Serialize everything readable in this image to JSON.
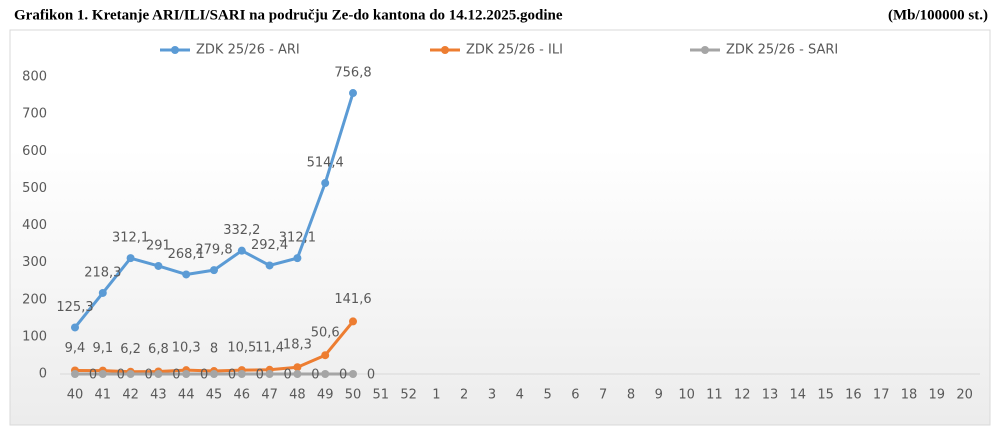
{
  "title": "Grafikon 1. Kretanje ARI/ILI/SARI na području Ze-do kantona do 14.12.2025.godine",
  "unit": "(Mb/100000 st.)",
  "chart_data": {
    "type": "line",
    "categories": [
      "40",
      "41",
      "42",
      "43",
      "44",
      "45",
      "46",
      "47",
      "48",
      "49",
      "50",
      "51",
      "52",
      "1",
      "2",
      "3",
      "4",
      "5",
      "6",
      "7",
      "8",
      "9",
      "10",
      "11",
      "12",
      "13",
      "14",
      "15",
      "16",
      "17",
      "18",
      "19",
      "20"
    ],
    "ylim": [
      0,
      800
    ],
    "yticks": [
      0,
      100,
      200,
      300,
      400,
      500,
      600,
      700,
      800
    ],
    "series": [
      {
        "name": "ZDK 25/26 - ARI",
        "color": "#5b9bd5",
        "values": [
          125.3,
          218.3,
          312.1,
          291,
          268.1,
          279.8,
          332.2,
          292.4,
          312.1,
          514.4,
          756.8,
          null,
          null,
          null,
          null,
          null,
          null,
          null,
          null,
          null,
          null,
          null,
          null,
          null,
          null,
          null,
          null,
          null,
          null,
          null,
          null,
          null,
          null
        ],
        "value_labels": [
          "125,3",
          "218,3",
          "312,1",
          "291",
          "268,1",
          "279,8",
          "332,2",
          "292,4",
          "312,1",
          "514,4",
          "756,8",
          null,
          null,
          null,
          null,
          null,
          null,
          null,
          null,
          null,
          null,
          null,
          null,
          null,
          null,
          null,
          null,
          null,
          null,
          null,
          null,
          null,
          null
        ]
      },
      {
        "name": "ZDK 25/26 - ILI",
        "color": "#ed7d31",
        "values": [
          9.4,
          9.1,
          6.2,
          6.8,
          10.3,
          8,
          10.5,
          11.4,
          18.3,
          50.6,
          141.6,
          null,
          null,
          null,
          null,
          null,
          null,
          null,
          null,
          null,
          null,
          null,
          null,
          null,
          null,
          null,
          null,
          null,
          null,
          null,
          null,
          null,
          null
        ],
        "value_labels": [
          "9,4",
          "9,1",
          "6,2",
          "6,8",
          "10,3",
          "8",
          "10,5",
          "11,4",
          "18,3",
          "50,6",
          "141,6",
          null,
          null,
          null,
          null,
          null,
          null,
          null,
          null,
          null,
          null,
          null,
          null,
          null,
          null,
          null,
          null,
          null,
          null,
          null,
          null,
          null,
          null
        ]
      },
      {
        "name": "ZDK 25/26 - SARI",
        "color": "#a5a5a5",
        "values": [
          0,
          0,
          0,
          0,
          0,
          0,
          0,
          0,
          0,
          0,
          0,
          null,
          null,
          null,
          null,
          null,
          null,
          null,
          null,
          null,
          null,
          null,
          null,
          null,
          null,
          null,
          null,
          null,
          null,
          null,
          null,
          null,
          null
        ]
      }
    ],
    "legend": "top"
  }
}
